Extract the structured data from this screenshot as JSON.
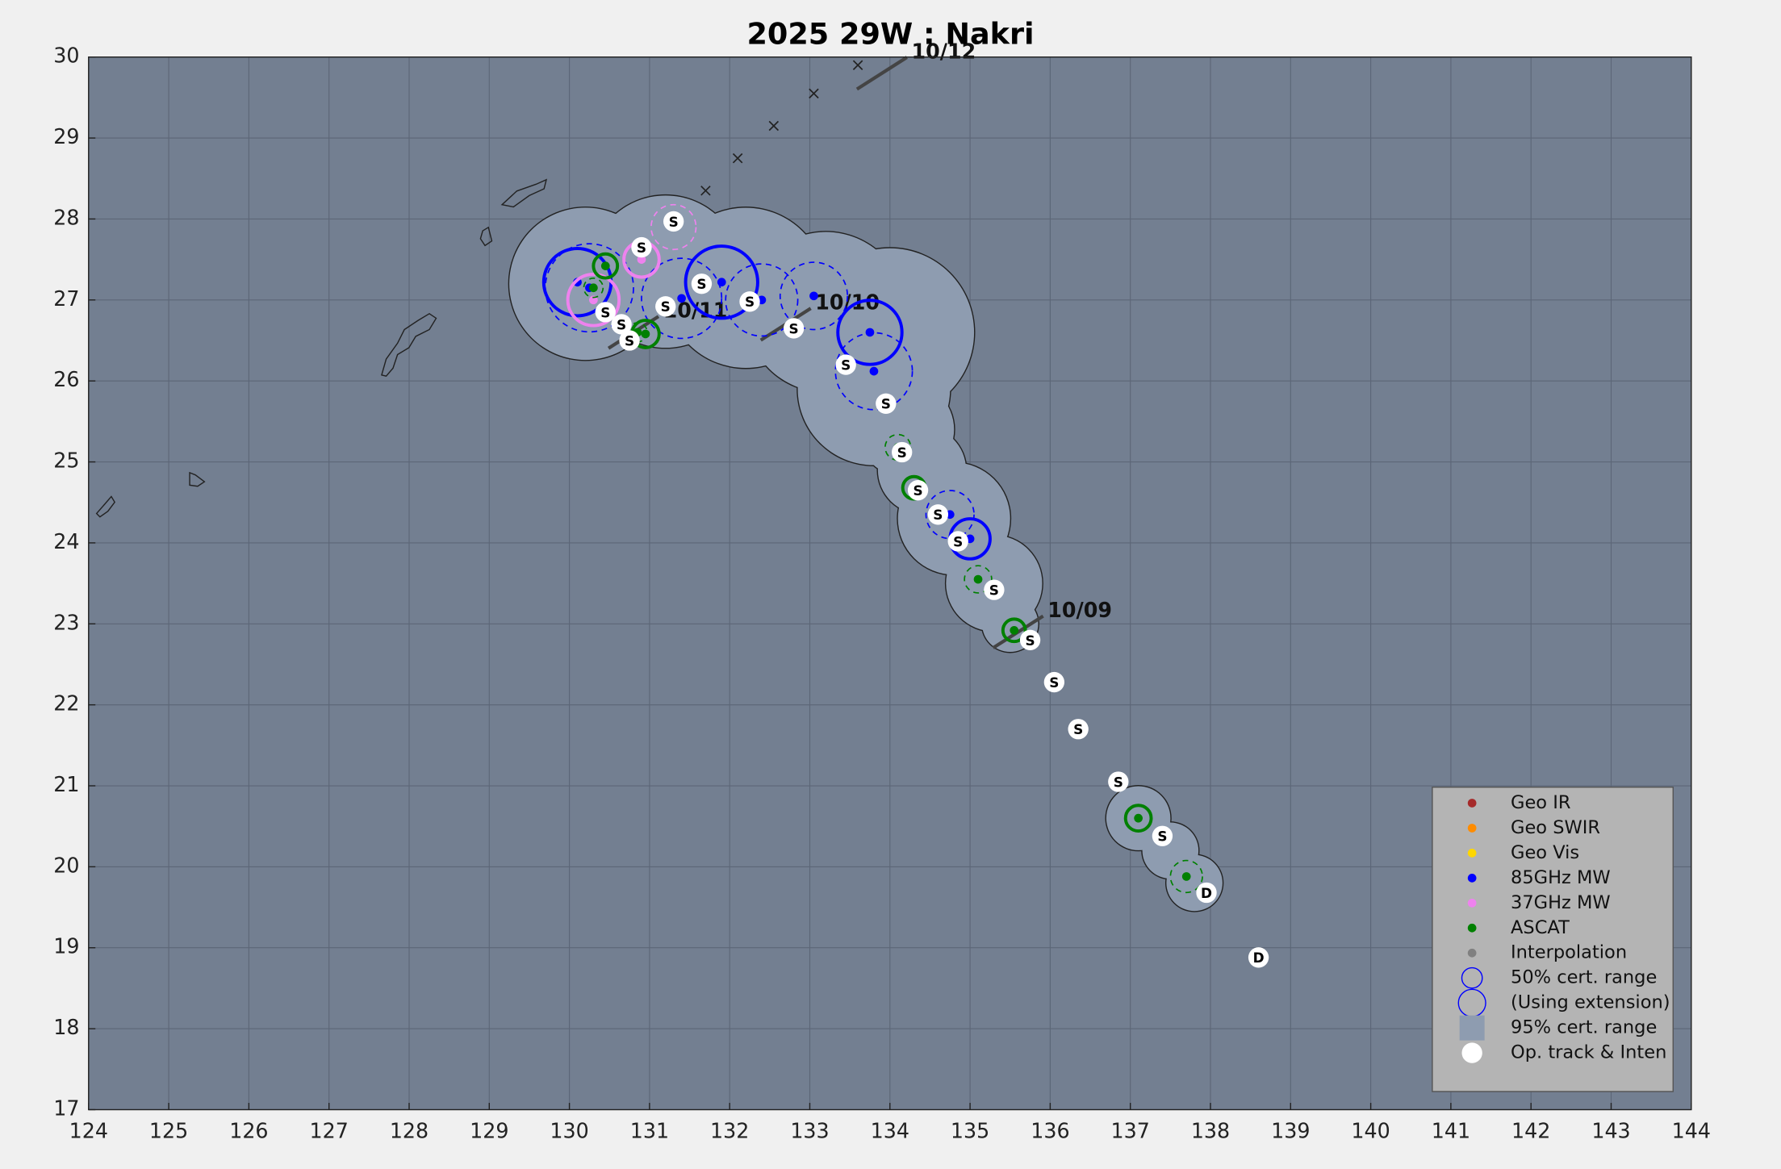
{
  "chart_data": {
    "type": "scatter",
    "title": "2025  29W :  Nakri",
    "xlim": [
      124,
      144
    ],
    "ylim": [
      17,
      30
    ],
    "xticks": [
      124,
      125,
      126,
      127,
      128,
      129,
      130,
      131,
      132,
      133,
      134,
      135,
      136,
      137,
      138,
      139,
      140,
      141,
      142,
      143,
      144
    ],
    "yticks": [
      17,
      18,
      19,
      20,
      21,
      22,
      23,
      24,
      25,
      26,
      27,
      28,
      29,
      30
    ],
    "grid": true,
    "uncertainty": {
      "name": "95% cert. range",
      "color": "#8e9cb0",
      "x": [
        130.2,
        131.2,
        132.2,
        133.2,
        134.0,
        133.8,
        134.2,
        134.4,
        134.8,
        135.3,
        135.5,
        137.1,
        137.5,
        137.8
      ],
      "y": [
        27.2,
        27.35,
        27.15,
        26.85,
        26.6,
        25.9,
        25.4,
        24.9,
        24.3,
        23.5,
        23.0,
        20.6,
        20.2,
        19.8
      ],
      "r": [
        0.95,
        0.95,
        1.0,
        1.0,
        1.05,
        0.95,
        0.6,
        0.55,
        0.7,
        0.6,
        0.35,
        0.4,
        0.35,
        0.35
      ]
    },
    "track": {
      "name": "Op. track & Inten",
      "color": "#ffffff",
      "x": [
        138.6,
        137.95,
        137.4,
        136.85,
        136.35,
        136.05,
        135.75,
        135.3,
        134.85,
        134.6,
        134.35,
        134.15,
        133.95,
        133.45,
        132.8,
        132.25,
        131.65,
        131.2,
        130.75,
        130.65,
        130.45,
        130.9,
        131.3
      ],
      "y": [
        18.88,
        19.68,
        20.38,
        21.05,
        21.7,
        22.28,
        22.8,
        23.42,
        24.02,
        24.35,
        24.65,
        25.12,
        25.72,
        26.2,
        26.65,
        26.98,
        27.2,
        26.92,
        26.5,
        26.7,
        26.85,
        27.65,
        27.97
      ],
      "labels": [
        "D",
        "D",
        "S",
        "S",
        "S",
        "S",
        "S",
        "S",
        "S",
        "S",
        "S",
        "S",
        "S",
        "S",
        "S",
        "S",
        "S",
        "S",
        "S",
        "S",
        "S",
        "S",
        "S"
      ]
    },
    "series": [
      {
        "name": "Geo IR",
        "color": "#a52a2a",
        "x": [],
        "y": [],
        "r": [],
        "extension": []
      },
      {
        "name": "Geo SWIR",
        "color": "#ff8c00",
        "x": [],
        "y": [],
        "r": [],
        "extension": []
      },
      {
        "name": "Geo Vis",
        "color": "#ffd700",
        "x": [],
        "y": [],
        "r": [],
        "extension": []
      },
      {
        "name": "85GHz MW",
        "color": "#0000ff",
        "x": [
          130.1,
          130.25,
          131.4,
          131.9,
          132.4,
          133.05,
          133.75,
          133.8,
          134.75,
          135.0
        ],
        "y": [
          27.22,
          27.15,
          27.02,
          27.22,
          27.0,
          27.05,
          26.6,
          26.12,
          24.35,
          24.05
        ],
        "r": [
          0.42,
          0.55,
          0.5,
          0.45,
          0.45,
          0.42,
          0.4,
          0.48,
          0.3,
          0.25
        ],
        "extension": [
          false,
          true,
          true,
          false,
          true,
          true,
          false,
          true,
          true,
          false
        ]
      },
      {
        "name": "37GHz MW",
        "color": "#ee82ee",
        "x": [
          130.9,
          130.3,
          131.3
        ],
        "y": [
          27.5,
          27.0,
          27.9
        ],
        "r": [
          0.22,
          0.32,
          0.28
        ],
        "extension": [
          false,
          false,
          true
        ]
      },
      {
        "name": "ASCAT",
        "color": "#008000",
        "x": [
          130.45,
          130.3,
          130.85,
          130.95,
          134.1,
          134.3,
          135.1,
          135.55,
          137.1,
          137.7
        ],
        "y": [
          27.42,
          27.15,
          26.6,
          26.58,
          25.18,
          24.68,
          23.55,
          22.92,
          20.6,
          19.88
        ],
        "r": [
          0.15,
          0.12,
          0.12,
          0.17,
          0.16,
          0.14,
          0.17,
          0.14,
          0.16,
          0.2
        ],
        "extension": [
          false,
          true,
          true,
          false,
          true,
          false,
          true,
          false,
          false,
          true
        ]
      },
      {
        "name": "Interpolation",
        "color": "#808080",
        "x": [],
        "y": [],
        "r": [],
        "extension": []
      }
    ],
    "range_legend": [
      "50% cert. range",
      "(Using extension)"
    ],
    "extrapolated": {
      "x": [
        131.7,
        132.1,
        132.55,
        133.05,
        133.6
      ],
      "y": [
        28.35,
        28.75,
        29.15,
        29.55,
        29.9
      ]
    },
    "dates": {
      "labels": [
        "10/09",
        "10/10",
        "10/11",
        "10/12"
      ],
      "x": [
        135.6,
        132.7,
        130.8,
        133.9
      ],
      "y": [
        22.9,
        26.7,
        26.6,
        29.8
      ]
    }
  }
}
